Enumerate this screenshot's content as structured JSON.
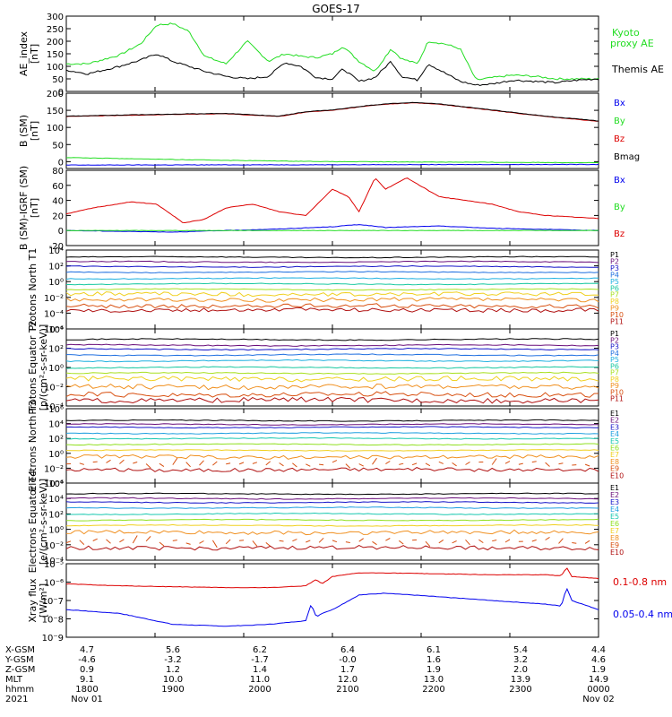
{
  "title": "GOES-17",
  "colors": {
    "green": "#22dd22",
    "black": "#000000",
    "blue": "#0000ee",
    "red": "#dd0000",
    "proton_channels": [
      "#000000",
      "#6a0f7a",
      "#1515c8",
      "#1f6fe0",
      "#1fb0e0",
      "#18c8a0",
      "#a8e020",
      "#f0d020",
      "#f09020",
      "#d85010",
      "#b01010",
      "#800808"
    ],
    "electron_channels": [
      "#000000",
      "#6a0f7a",
      "#1515c8",
      "#1f9fe0",
      "#18c8b0",
      "#90e020",
      "#f0d020",
      "#f09020",
      "#d85010",
      "#b01010"
    ]
  },
  "chart_data": [
    {
      "type": "line",
      "ylabel": "AE_index [nT]",
      "ylim": [
        0,
        300
      ],
      "yticks": [
        "0",
        "50",
        "100",
        "150",
        "200",
        "250",
        "300"
      ],
      "legend": [
        "Kyoto proxy AE",
        "Themis AE"
      ],
      "series": [
        {
          "name": "Kyoto proxy AE",
          "color": "green",
          "x": [
            0,
            0.04,
            0.1,
            0.14,
            0.17,
            0.2,
            0.23,
            0.26,
            0.3,
            0.34,
            0.38,
            0.41,
            0.44,
            0.47,
            0.5,
            0.52,
            0.55,
            0.58,
            0.61,
            0.63,
            0.66,
            0.68,
            0.71,
            0.74,
            0.77,
            0.8,
            0.84,
            0.88,
            0.92,
            0.96,
            1
          ],
          "y": [
            110,
            110,
            145,
            190,
            265,
            270,
            240,
            140,
            110,
            200,
            120,
            150,
            140,
            135,
            150,
            180,
            120,
            80,
            170,
            130,
            110,
            200,
            190,
            170,
            45,
            55,
            65,
            60,
            50,
            50,
            50
          ]
        },
        {
          "name": "Themis AE",
          "color": "black",
          "x": [
            0,
            0.04,
            0.1,
            0.14,
            0.17,
            0.2,
            0.23,
            0.26,
            0.3,
            0.34,
            0.38,
            0.41,
            0.44,
            0.47,
            0.5,
            0.52,
            0.55,
            0.58,
            0.61,
            0.63,
            0.66,
            0.68,
            0.71,
            0.74,
            0.77,
            0.8,
            0.84,
            0.88,
            0.92,
            0.96,
            1
          ],
          "y": [
            85,
            70,
            100,
            125,
            150,
            120,
            100,
            80,
            60,
            50,
            60,
            115,
            100,
            55,
            50,
            90,
            40,
            55,
            120,
            60,
            45,
            110,
            75,
            40,
            25,
            30,
            45,
            40,
            35,
            45,
            50
          ]
        }
      ]
    },
    {
      "type": "line",
      "ylabel": "B (SM) [nT]",
      "ylim": [
        -20,
        200
      ],
      "yticks": [
        "0",
        "50",
        "100",
        "150",
        "200"
      ],
      "legend": [
        "Bx",
        "By",
        "Bz",
        "Bmag"
      ],
      "series": [
        {
          "name": "Bx",
          "color": "blue",
          "x": [
            0,
            0.5,
            1
          ],
          "y": [
            -10,
            -9,
            -8
          ]
        },
        {
          "name": "By",
          "color": "green",
          "x": [
            0,
            0.25,
            0.5,
            1
          ],
          "y": [
            12,
            5,
            0,
            -3
          ]
        },
        {
          "name": "Bz",
          "color": "red",
          "x": [
            0,
            0.1,
            0.2,
            0.3,
            0.4,
            0.45,
            0.5,
            0.55,
            0.6,
            0.65,
            0.7,
            0.8,
            0.9,
            1
          ],
          "y": [
            132,
            135,
            138,
            140,
            132,
            145,
            150,
            160,
            168,
            172,
            168,
            150,
            132,
            118
          ]
        },
        {
          "name": "Bmag",
          "color": "black",
          "x": [
            0,
            0.1,
            0.2,
            0.3,
            0.4,
            0.45,
            0.5,
            0.55,
            0.6,
            0.65,
            0.7,
            0.8,
            0.9,
            1
          ],
          "y": [
            133,
            136,
            139,
            141,
            133,
            146,
            151,
            161,
            169,
            173,
            169,
            151,
            133,
            119
          ]
        }
      ]
    },
    {
      "type": "line",
      "ylabel": "B (SM)-IGRF (SM) [nT]",
      "ylim": [
        -20,
        80
      ],
      "yticks": [
        "-20",
        "0",
        "20",
        "40",
        "60",
        "80"
      ],
      "legend": [
        "Bx",
        "By",
        "Bz"
      ],
      "series": [
        {
          "name": "Bx",
          "color": "blue",
          "x": [
            0,
            0.2,
            0.4,
            0.5,
            0.55,
            0.6,
            0.7,
            0.8,
            1
          ],
          "y": [
            0,
            -2,
            2,
            5,
            8,
            4,
            6,
            3,
            0
          ]
        },
        {
          "name": "By",
          "color": "green",
          "x": [
            0,
            1
          ],
          "y": [
            0,
            0
          ]
        },
        {
          "name": "Bz",
          "color": "red",
          "x": [
            0,
            0.05,
            0.12,
            0.17,
            0.22,
            0.26,
            0.3,
            0.35,
            0.4,
            0.45,
            0.5,
            0.53,
            0.55,
            0.58,
            0.6,
            0.64,
            0.7,
            0.75,
            0.8,
            0.85,
            0.9,
            1
          ],
          "y": [
            22,
            30,
            38,
            35,
            10,
            15,
            30,
            35,
            25,
            20,
            55,
            45,
            25,
            70,
            55,
            70,
            45,
            40,
            35,
            25,
            20,
            16
          ]
        }
      ]
    },
    {
      "type": "line",
      "ylabel": "Protons North T1",
      "ylim": [
        -6,
        4
      ],
      "ytick_exponents": [
        -6,
        -4,
        -2,
        0,
        2,
        4
      ],
      "legend": [
        "P1",
        "P2",
        "P3",
        "P4",
        "P5",
        "P6",
        "P7",
        "P8",
        "P9",
        "P10",
        "P11"
      ],
      "levels": [
        3.1,
        2.5,
        1.9,
        1.2,
        0.4,
        -0.3,
        -1.0,
        -1.6,
        -2.3,
        -3.1,
        -3.6
      ]
    },
    {
      "type": "line",
      "ylabel": "Protons Equator T2 [p/(cm²-s-sr-keV)]",
      "ylim": [
        -4,
        4
      ],
      "ytick_exponents": [
        -4,
        -2,
        0,
        2,
        4
      ],
      "legend": [
        "P1",
        "P2",
        "P3",
        "P4",
        "P5",
        "P6",
        "P7",
        "P8",
        "P9",
        "P10",
        "P11"
      ],
      "levels": [
        2.9,
        2.3,
        1.9,
        1.3,
        0.7,
        0.0,
        -0.6,
        -1.2,
        -2.0,
        -2.8,
        -3.4
      ]
    },
    {
      "type": "line",
      "ylabel": "Electrons North T3",
      "ylim": [
        -4,
        6
      ],
      "ytick_exponents": [
        -4,
        -2,
        0,
        2,
        4,
        6
      ],
      "legend": [
        "E1",
        "E2",
        "E3",
        "E4",
        "E5",
        "E6",
        "E7",
        "E8",
        "E9",
        "E10"
      ],
      "levels": [
        4.4,
        3.9,
        3.5,
        2.7,
        2.0,
        1.2,
        0.4,
        -0.5,
        -1.4,
        -2.2
      ]
    },
    {
      "type": "line",
      "ylabel": "Electrons Equator T4 [e/(cm²-s-sr-keV)]",
      "ylim": [
        -4,
        6
      ],
      "ytick_exponents": [
        -4,
        -2,
        0,
        2,
        4,
        6
      ],
      "legend": [
        "E1",
        "E2",
        "E3",
        "E4",
        "E5",
        "E6",
        "E7",
        "E8",
        "E9",
        "E10"
      ],
      "levels": [
        4.6,
        4.0,
        3.5,
        2.8,
        2.0,
        1.2,
        0.5,
        -0.4,
        -1.6,
        -2.4
      ]
    },
    {
      "type": "line",
      "ylabel": "Xray flux [W/m²]",
      "ylim": [
        -9,
        -5
      ],
      "ytick_exponents": [
        -9,
        -8,
        -7,
        -6,
        -5
      ],
      "legend": [
        "0.1-0.8 nm",
        "0.05-0.4 nm"
      ],
      "series": [
        {
          "name": "0.1-0.8 nm",
          "color": "red",
          "x": [
            0,
            0.1,
            0.2,
            0.3,
            0.38,
            0.45,
            0.47,
            0.48,
            0.5,
            0.55,
            0.6,
            0.7,
            0.8,
            0.9,
            0.93,
            0.94,
            0.95,
            1
          ],
          "y": [
            -6.1,
            -6.2,
            -6.25,
            -6.3,
            -6.3,
            -6.2,
            -5.85,
            -6.1,
            -5.7,
            -5.5,
            -5.5,
            -5.55,
            -5.6,
            -5.6,
            -5.65,
            -5.2,
            -5.7,
            -5.8
          ]
        },
        {
          "name": "0.05-0.4 nm",
          "color": "blue",
          "x": [
            0,
            0.1,
            0.2,
            0.3,
            0.38,
            0.45,
            0.46,
            0.47,
            0.48,
            0.5,
            0.55,
            0.6,
            0.7,
            0.8,
            0.9,
            0.93,
            0.94,
            0.95,
            1
          ],
          "y": [
            -7.5,
            -7.7,
            -8.3,
            -8.4,
            -8.3,
            -8.1,
            -7.2,
            -7.9,
            -7.7,
            -7.5,
            -6.7,
            -6.6,
            -6.8,
            -7.0,
            -7.2,
            -7.3,
            -6.3,
            -7.0,
            -7.5
          ]
        }
      ]
    }
  ],
  "ephemeris": {
    "rows": [
      {
        "label": "X-GSM",
        "values": [
          "4.7",
          "5.6",
          "6.2",
          "6.4",
          "6.1",
          "5.4",
          "4.4"
        ]
      },
      {
        "label": "Y-GSM",
        "values": [
          "-4.6",
          "-3.2",
          "-1.7",
          "-0.0",
          "1.6",
          "3.2",
          "4.6"
        ]
      },
      {
        "label": "Z-GSM",
        "values": [
          "0.9",
          "1.2",
          "1.4",
          "1.7",
          "1.9",
          "2.0",
          "1.9"
        ]
      },
      {
        "label": "MLT",
        "values": [
          "9.1",
          "10.0",
          "11.0",
          "12.0",
          "13.0",
          "13.9",
          "14.9"
        ]
      },
      {
        "label": "hhmm",
        "values": [
          "1800",
          "1900",
          "2000",
          "2100",
          "2200",
          "2300",
          "0000"
        ]
      },
      {
        "label": "2021",
        "values": [
          "Nov 01",
          "",
          "",
          "",
          "",
          "",
          "Nov 02"
        ]
      }
    ]
  }
}
